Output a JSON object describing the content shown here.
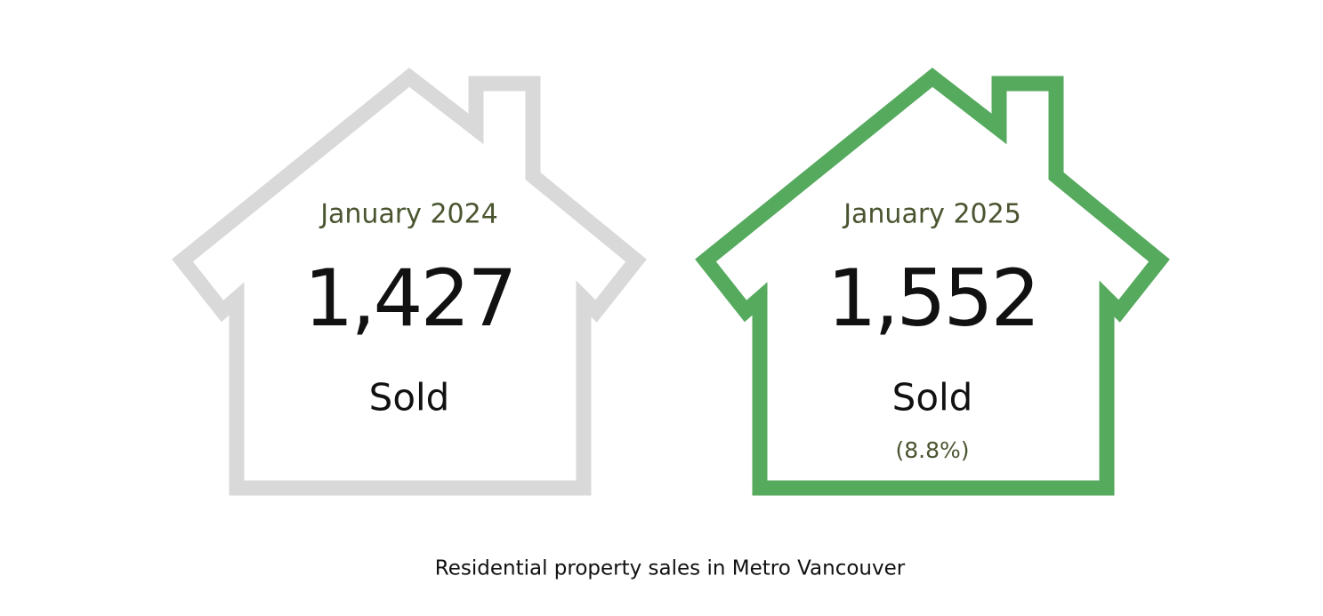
{
  "cards": [
    {
      "period": "January 2024",
      "value": "1,427",
      "label": "Sold"
    },
    {
      "period": "January 2025",
      "value": "1,552",
      "label": "Sold",
      "change": "(8.8%)"
    }
  ],
  "caption": "Residential property sales in Metro Vancouver"
}
